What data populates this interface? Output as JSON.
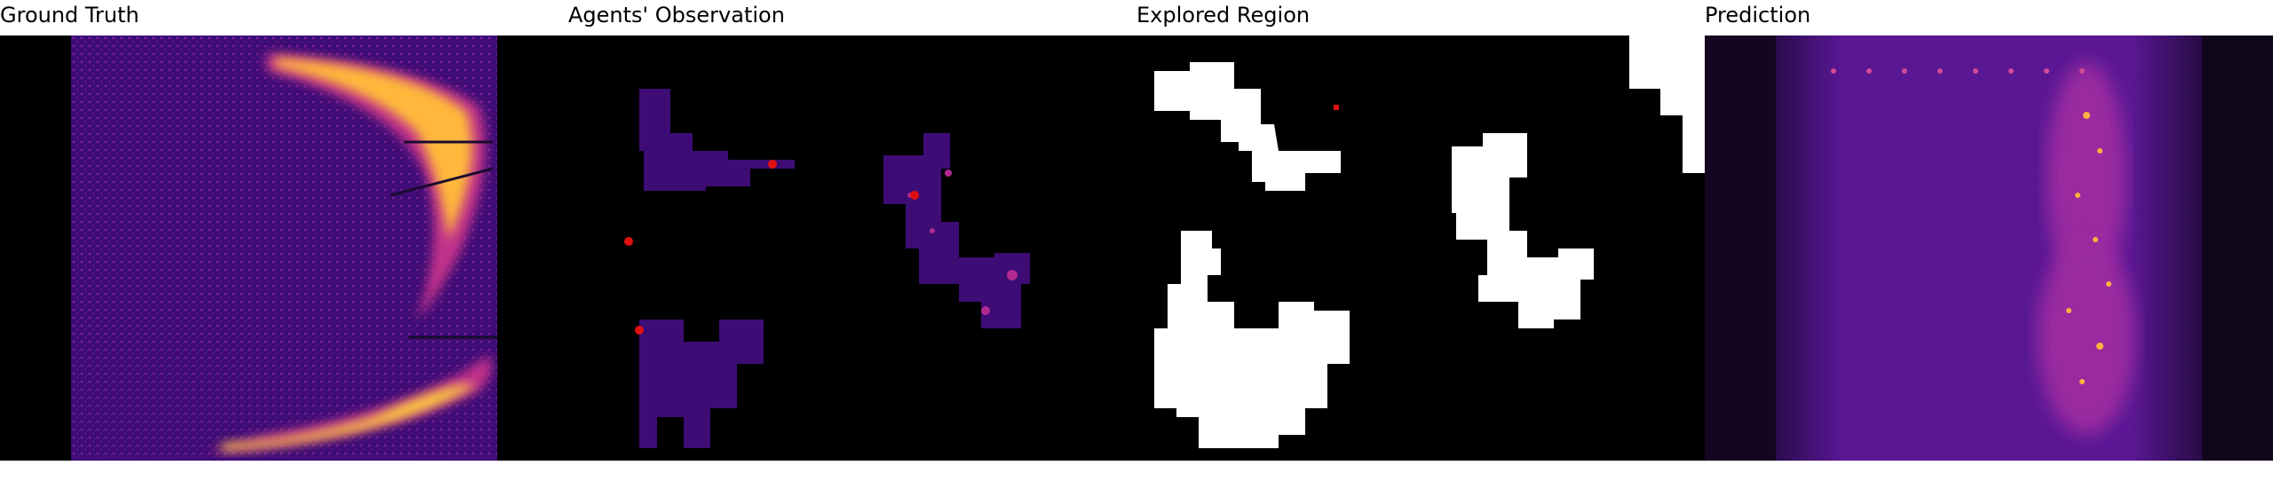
{
  "panels": [
    {
      "title": "Ground Truth"
    },
    {
      "title": "Agents' Observation"
    },
    {
      "title": "Explored Region"
    },
    {
      "title": "Prediction"
    }
  ],
  "colors": {
    "heat_low": "#3a0a6e",
    "heat_mid": "#c2308a",
    "heat_high": "#ffd23a",
    "explored": "#ffffff",
    "agent_marker": "#e11010",
    "background": "#000000"
  }
}
